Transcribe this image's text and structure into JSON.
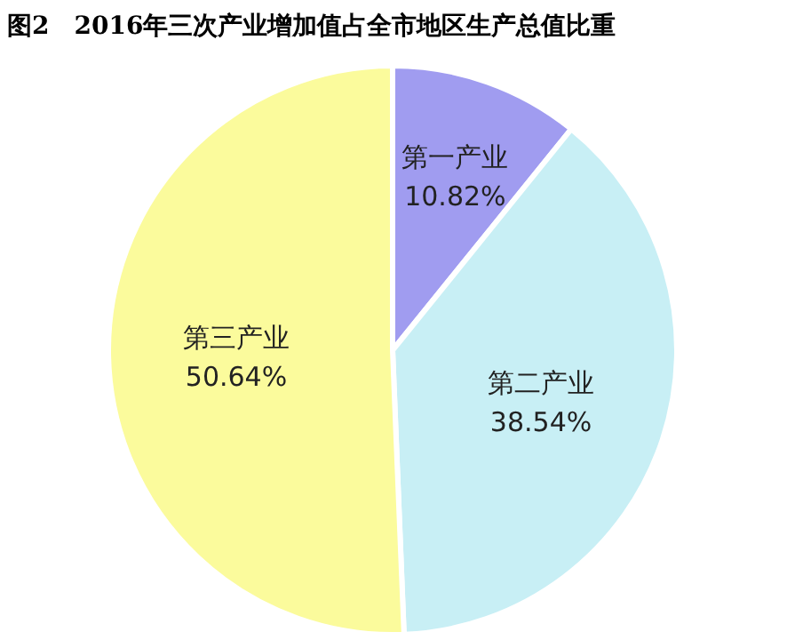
{
  "chart_data": {
    "type": "pie",
    "title": "图2　2016年三次产业增加值占全市地区生产总值比重",
    "categories": [
      "第一产业",
      "第二产业",
      "第三产业"
    ],
    "values": [
      10.82,
      38.54,
      50.64
    ],
    "value_labels": [
      "10.82%",
      "38.54%",
      "50.64%"
    ],
    "colors": [
      "#a09cf0",
      "#c8eff5",
      "#fbfb9c"
    ]
  }
}
